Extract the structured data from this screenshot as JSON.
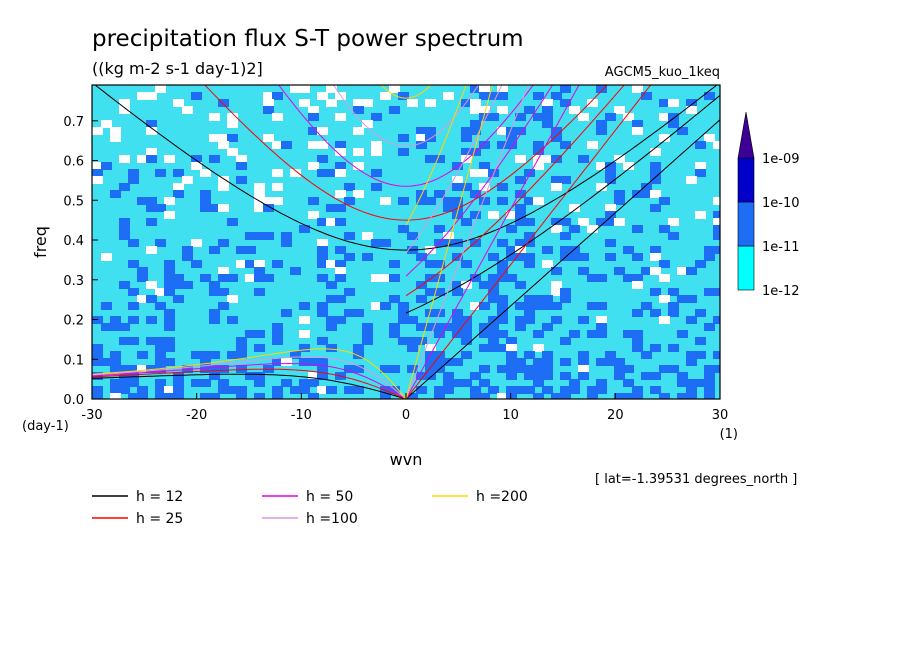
{
  "chart_data": {
    "type": "heatmap",
    "title": "precipitation flux S-T power spectrum",
    "subtitle": "((kg m-2 s-1 day-1)2]",
    "model_label": "AGCM5_kuo_1keq",
    "xlabel": "wvn",
    "ylabel": "freq",
    "x_unit_label": "(1)",
    "y_unit_label": "(day-1)",
    "xlim": [
      -30,
      30
    ],
    "ylim": [
      0,
      0.79
    ],
    "x_ticks": [
      -30,
      -20,
      -10,
      0,
      10,
      20,
      30
    ],
    "y_ticks": [
      0.0,
      0.1,
      0.2,
      0.3,
      0.4,
      0.5,
      0.6,
      0.7
    ],
    "x_tick_labels": [
      "-30",
      "-20",
      "-10",
      "0",
      "10",
      "20",
      "30"
    ],
    "y_tick_labels": [
      "0.0",
      "0.1",
      "0.2",
      "0.3",
      "0.4",
      "0.5",
      "0.6",
      "0.7"
    ],
    "colorbar": {
      "levels": [
        "1e-12",
        "1e-11",
        "1e-10",
        "1e-09"
      ],
      "colors": [
        "#00ffff",
        "#1e6ef5",
        "#0000c8",
        "#3c0096"
      ]
    },
    "field_colors": {
      "white": "#ffffff",
      "cyan": "#40e0f0",
      "blue": "#1e6ef5"
    },
    "dispersion_curves": [
      {
        "name": "h = 12",
        "h": 12,
        "color": "#000000"
      },
      {
        "name": "h = 25",
        "h": 25,
        "color": "#ff0000"
      },
      {
        "name": "h = 50",
        "h": 50,
        "color": "#e600e6"
      },
      {
        "name": "h =100",
        "h": 100,
        "color": "#dd99dd"
      },
      {
        "name": "h =200",
        "h": 200,
        "color": "#ffd700"
      }
    ],
    "footnote": "[ lat=-1.39531 degrees_north ]",
    "grid": false,
    "legend_position": "bottom-left"
  }
}
